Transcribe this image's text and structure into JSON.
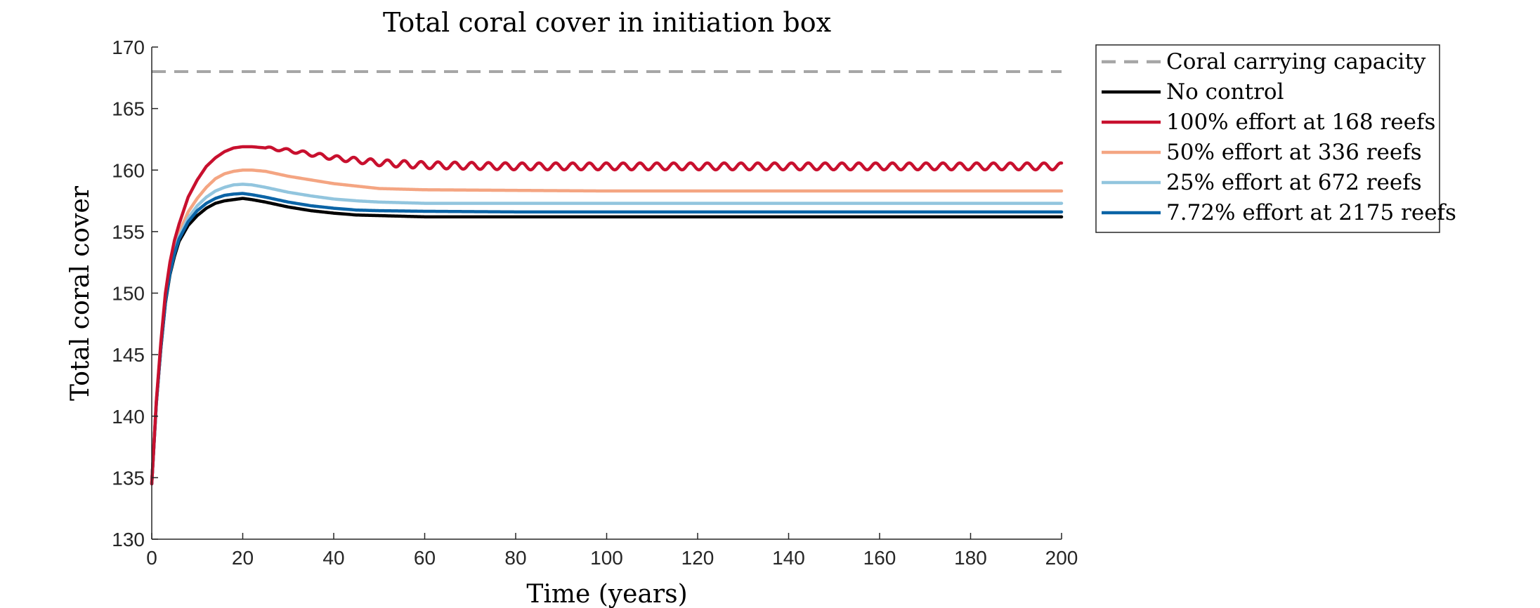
{
  "chart_data": {
    "type": "line",
    "title": "Total coral cover in initiation box",
    "xlabel": "Time (years)",
    "ylabel": "Total coral cover",
    "xlim": [
      0,
      200
    ],
    "ylim": [
      130,
      170
    ],
    "xticks": [
      0,
      20,
      40,
      60,
      80,
      100,
      120,
      140,
      160,
      180,
      200
    ],
    "yticks": [
      130,
      135,
      140,
      145,
      150,
      155,
      160,
      165,
      170
    ],
    "grid": false,
    "legend_position": "outside-right-top",
    "carrying_capacity": {
      "name": "Coral carrying capacity",
      "value": 168,
      "color": "#a6a6a6",
      "style": "dashed"
    },
    "series": [
      {
        "name": "No control",
        "color": "#000000",
        "x": [
          0,
          1,
          2,
          3,
          4,
          5,
          6,
          8,
          10,
          12,
          14,
          16,
          18,
          20,
          22,
          25,
          30,
          35,
          40,
          45,
          50,
          60,
          80,
          100,
          150,
          200
        ],
        "y": [
          134.5,
          141,
          145.5,
          149.2,
          151.5,
          153,
          154.2,
          155.5,
          156.3,
          156.9,
          157.3,
          157.5,
          157.6,
          157.7,
          157.6,
          157.4,
          157.0,
          156.7,
          156.5,
          156.35,
          156.3,
          156.2,
          156.2,
          156.2,
          156.2,
          156.2
        ]
      },
      {
        "name": "100% effort at 168 reefs",
        "color": "#c8102e",
        "oscillating": true,
        "x": [
          0,
          1,
          2,
          3,
          4,
          5,
          6,
          8,
          10,
          12,
          14,
          16,
          18,
          20,
          22,
          25,
          30,
          35,
          40,
          45,
          50,
          60,
          80,
          100,
          150,
          200
        ],
        "y": [
          134.5,
          141.2,
          146,
          150,
          152.5,
          154.3,
          155.6,
          157.8,
          159.2,
          160.3,
          161.0,
          161.5,
          161.8,
          161.9,
          161.9,
          161.8,
          161.6,
          161.3,
          161.0,
          160.8,
          160.6,
          160.4,
          160.3,
          160.3,
          160.3,
          160.3
        ]
      },
      {
        "name": "50% effort at 336 reefs",
        "color": "#f4a582",
        "x": [
          0,
          1,
          2,
          3,
          4,
          5,
          6,
          8,
          10,
          12,
          14,
          16,
          18,
          20,
          22,
          25,
          30,
          35,
          40,
          45,
          50,
          60,
          80,
          100,
          150,
          200
        ],
        "y": [
          134.5,
          141.1,
          145.8,
          149.7,
          152.0,
          153.7,
          154.9,
          156.6,
          157.7,
          158.6,
          159.3,
          159.7,
          159.9,
          160.0,
          160.0,
          159.9,
          159.5,
          159.2,
          158.9,
          158.7,
          158.5,
          158.4,
          158.35,
          158.3,
          158.3,
          158.3
        ]
      },
      {
        "name": "25% effort at 672 reefs",
        "color": "#92c5de",
        "x": [
          0,
          1,
          2,
          3,
          4,
          5,
          6,
          8,
          10,
          12,
          14,
          16,
          18,
          20,
          22,
          25,
          30,
          35,
          40,
          45,
          50,
          60,
          80,
          100,
          150,
          200
        ],
        "y": [
          134.5,
          141.1,
          145.7,
          149.5,
          151.8,
          153.4,
          154.6,
          156.1,
          157.1,
          157.8,
          158.3,
          158.6,
          158.8,
          158.85,
          158.8,
          158.6,
          158.2,
          157.9,
          157.65,
          157.5,
          157.4,
          157.3,
          157.3,
          157.3,
          157.3,
          157.3
        ]
      },
      {
        "name": "7.72% effort at 2175 reefs",
        "color": "#0b64a6",
        "x": [
          0,
          1,
          2,
          3,
          4,
          5,
          6,
          8,
          10,
          12,
          14,
          16,
          18,
          20,
          22,
          25,
          30,
          35,
          40,
          45,
          50,
          60,
          80,
          100,
          150,
          200
        ],
        "y": [
          134.5,
          141.0,
          145.6,
          149.3,
          151.6,
          153.2,
          154.4,
          155.8,
          156.7,
          157.3,
          157.7,
          157.95,
          158.05,
          158.1,
          158.0,
          157.8,
          157.4,
          157.1,
          156.9,
          156.75,
          156.7,
          156.65,
          156.6,
          156.6,
          156.6,
          156.6
        ]
      }
    ]
  }
}
